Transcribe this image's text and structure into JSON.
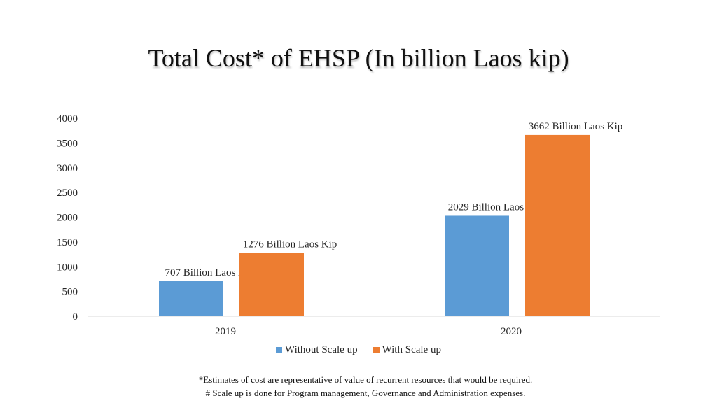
{
  "title": "Total Cost* of EHSP (In billion Laos kip)",
  "chart_data": {
    "type": "bar",
    "categories": [
      "2019",
      "2020"
    ],
    "series": [
      {
        "name": "Without Scale up",
        "values": [
          707,
          2029
        ],
        "color": "#5B9BD5",
        "labels": [
          "707 Billion Laos Kip",
          "2029 Billion Laos Kip"
        ]
      },
      {
        "name": "With Scale up",
        "values": [
          1276,
          3662
        ],
        "color": "#ED7D31",
        "labels": [
          "1276 Billion Laos Kip",
          "3662 Billion Laos Kip"
        ]
      }
    ],
    "ylim": [
      0,
      4000
    ],
    "yticks": [
      "0",
      "500",
      "1000",
      "1500",
      "2000",
      "2500",
      "3000",
      "3500",
      "4000"
    ],
    "grid": false,
    "legend": "bottom"
  },
  "footnotes": [
    "*Estimates of cost are representative of value of recurrent resources that would be required.",
    "# Scale up is done for Program management, Governance and Administration expenses."
  ]
}
